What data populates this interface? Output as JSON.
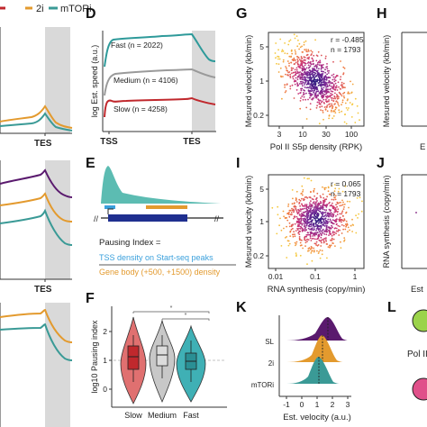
{
  "panels": {
    "D": "D",
    "E": "E",
    "F": "F",
    "G": "G",
    "H": "H",
    "I": "I",
    "J": "J",
    "K": "K",
    "L": "L"
  },
  "top_legend": {
    "label_2i": "2i",
    "label_mtori": "mTORi"
  },
  "left_column": {
    "tes1": "TES",
    "tes2": "TES"
  },
  "panel_d": {
    "ylabel": "log Est. speed (a.u.)",
    "tss": "TSS",
    "tes": "TES",
    "fast": "Fast (n = 2022)",
    "medium": "Medium (n = 4106)",
    "slow": "Slow (n = 4258)"
  },
  "panel_e": {
    "title": "Pausing Index =",
    "numerator": "TSS density on Start-seq peaks",
    "denominator": "Gene body (+500, +1500) density"
  },
  "panel_f": {
    "ylabel": "log10 Pausing index",
    "categories": [
      "Slow",
      "Medium",
      "Fast"
    ],
    "yticks": [
      "0",
      "1",
      "2"
    ]
  },
  "panel_g": {
    "ylabel": "Mesured velocity (kb/min)",
    "xlabel": "Pol II S5p density (RPK)",
    "r": "r =  -0.485",
    "n": "n = 1793",
    "xticks": [
      "3",
      "10",
      "30",
      "100"
    ],
    "yticks": [
      "5",
      "1",
      "0.2"
    ]
  },
  "panel_h": {
    "ylabel": "Mesured velocity (kb/min)",
    "xlabel": "E"
  },
  "panel_i": {
    "ylabel": "Mesured velocity (kb/min)",
    "xlabel": "RNA synthesis (copy/min)",
    "r": "r =  0.065",
    "n": "n = 1793",
    "xticks": [
      "0.01",
      "0.1",
      "1"
    ],
    "yticks": [
      "5",
      "1",
      "0.2"
    ]
  },
  "panel_j": {
    "ylabel": "RNA synthesis (copy/min)",
    "xlabel": "Est"
  },
  "panel_k": {
    "xlabel": "Est. velocity (a.u.)",
    "rows": [
      "SL",
      "2i",
      "mTORi"
    ],
    "xticks": [
      "-1",
      "0",
      "1",
      "2",
      "3"
    ]
  },
  "panel_l": {
    "label": "Pol II"
  },
  "colors": {
    "teal": "#3a9a96",
    "gray": "#9a9a9a",
    "red": "#c0282d",
    "orange": "#e39a2e",
    "purple": "#5a1a6e",
    "violin_red": "#e07070",
    "violin_gray": "#c8c8c8",
    "violin_teal": "#3fb0b5",
    "blue": "#1f2f8f",
    "light_blue": "#3aa0dc",
    "circle_green": "#9bd34a",
    "circle_pink": "#e0508a"
  }
}
